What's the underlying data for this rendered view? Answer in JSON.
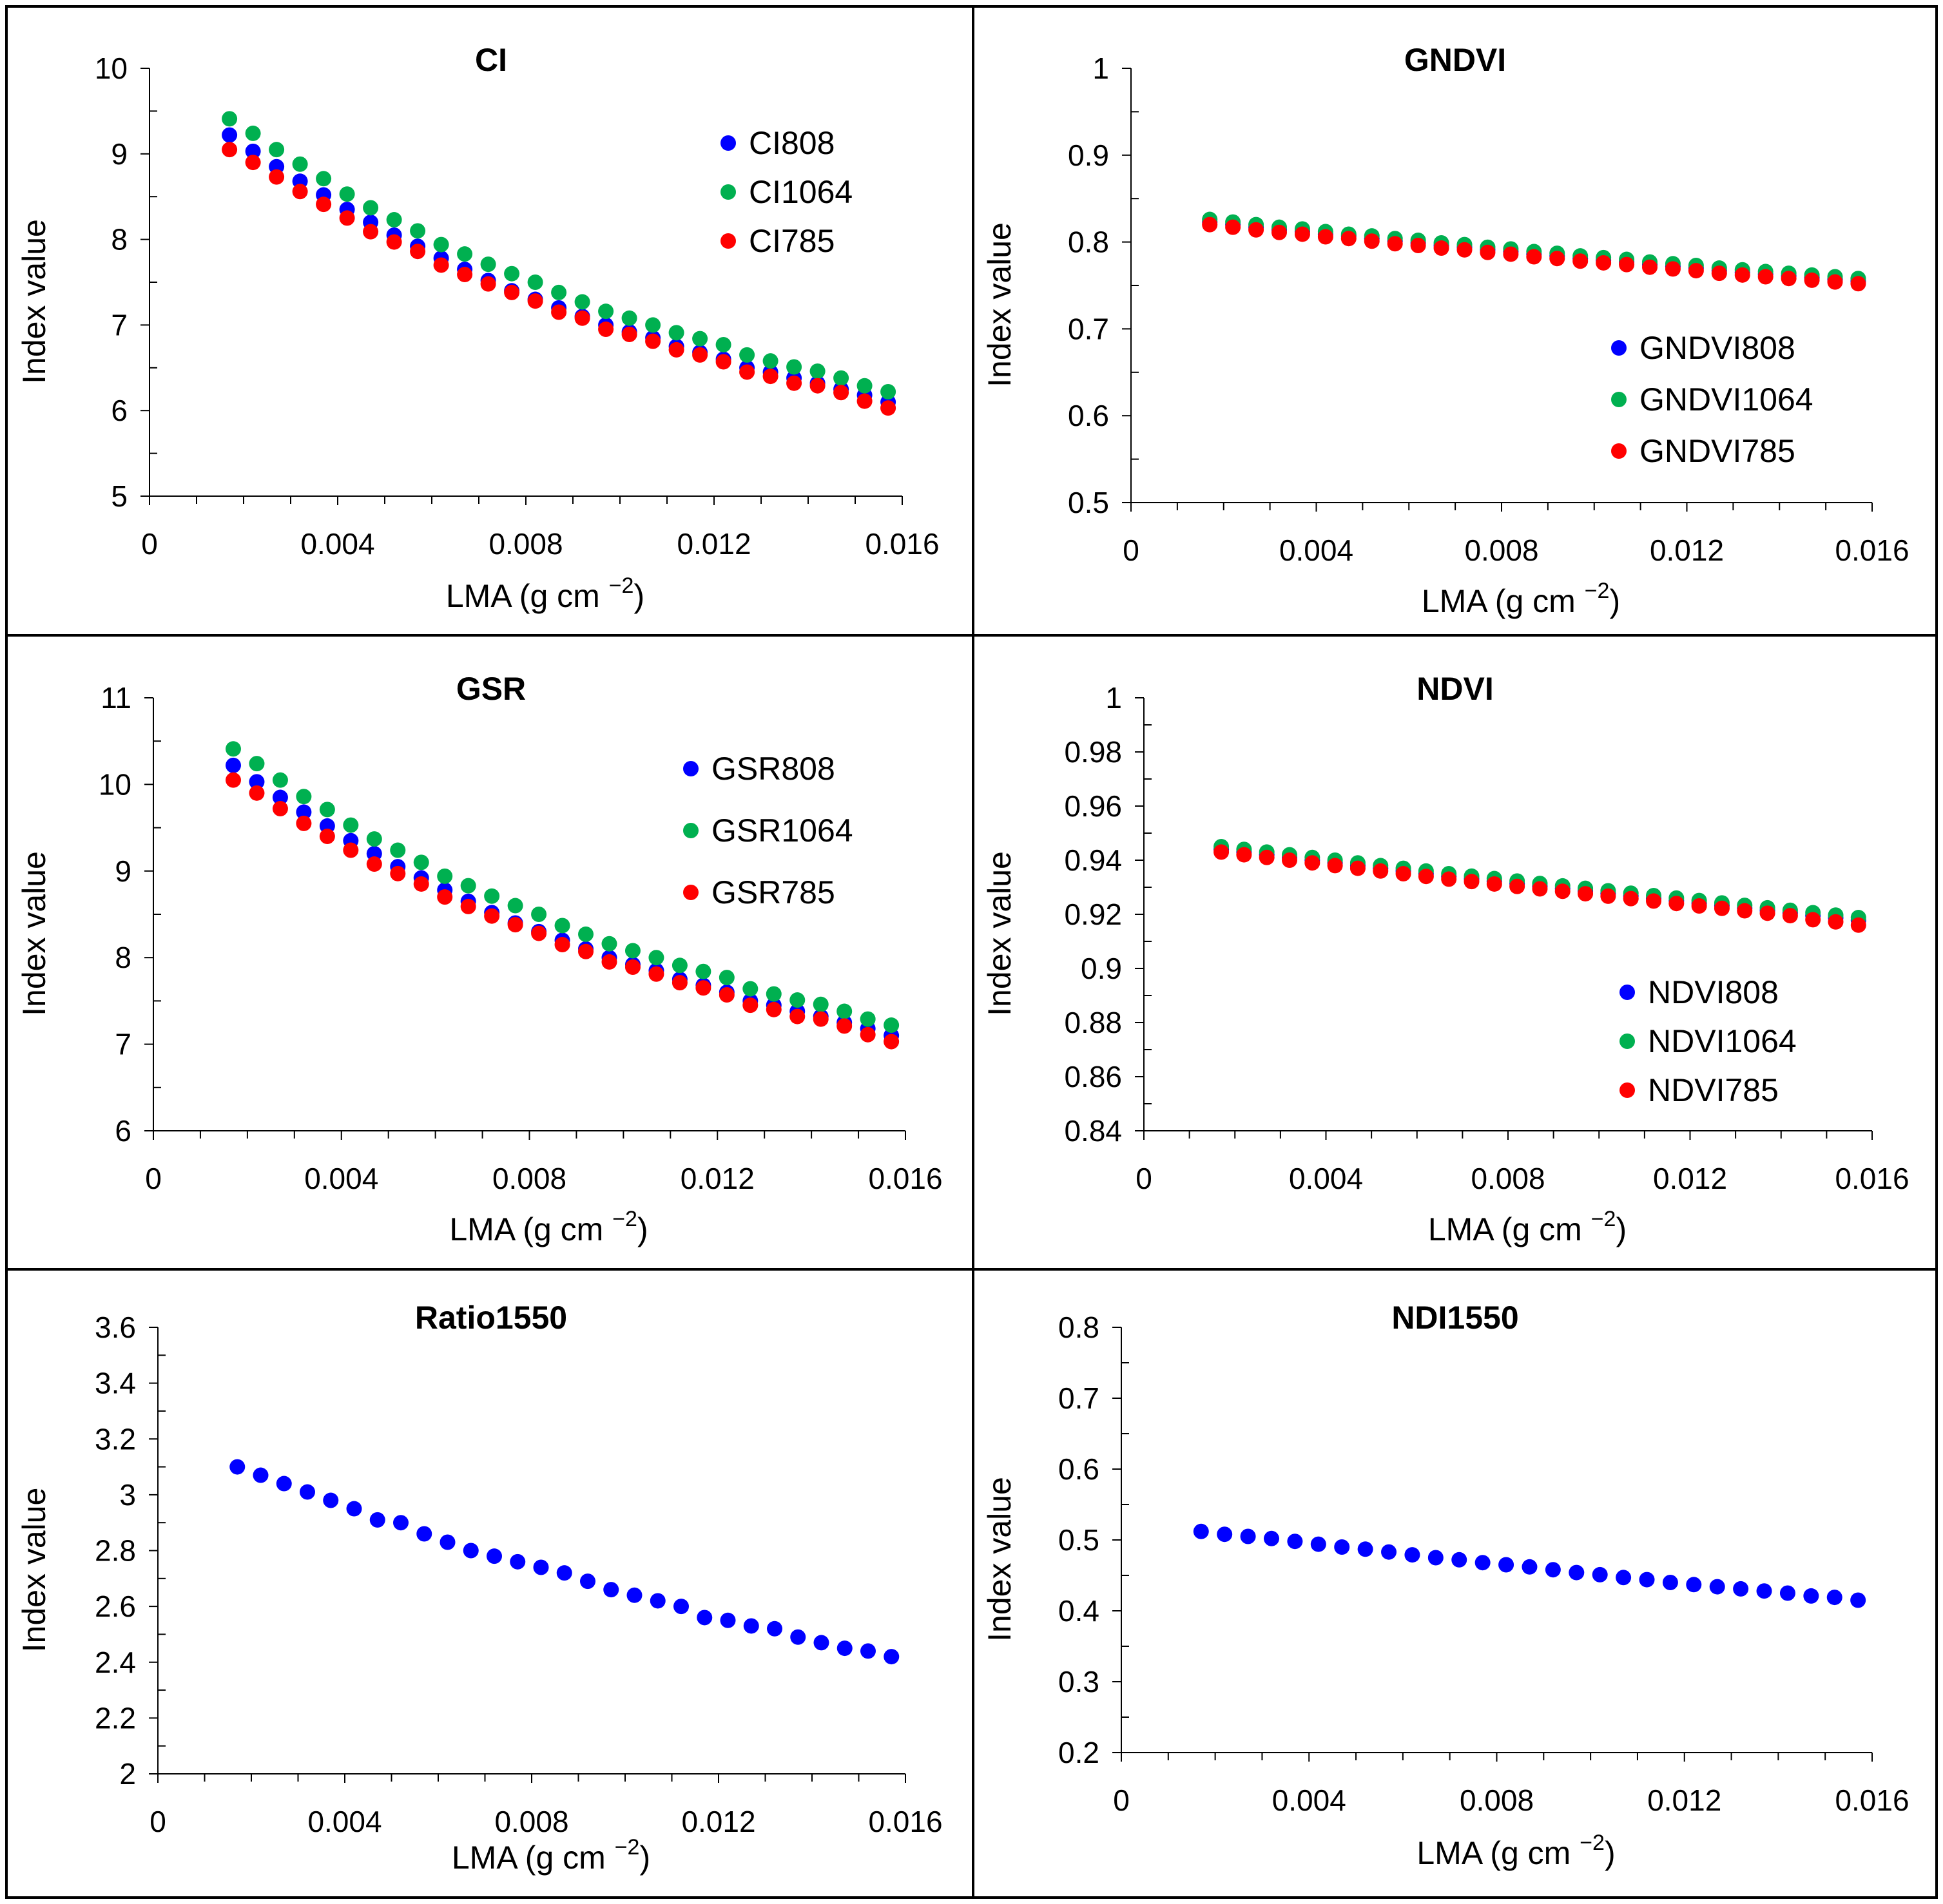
{
  "chart_data": [
    {
      "type": "scatter",
      "title": "CI",
      "xlabel": "LMA (g cm",
      "xlabel_sup": "−2",
      "xlabel_close": ")",
      "ylabel": "Index value",
      "xlim": [
        0,
        0.016
      ],
      "ylim": [
        5,
        10
      ],
      "xticks": [
        "0",
        "0.004",
        "0.008",
        "0.012",
        "0.016"
      ],
      "yticks": [
        "5",
        "6",
        "7",
        "8",
        "9",
        "10"
      ],
      "legend_position": "top-right",
      "x": [
        0.0017,
        0.0022,
        0.0027,
        0.0032,
        0.0037,
        0.0042,
        0.0047,
        0.0052,
        0.0057,
        0.0062,
        0.0067,
        0.0072,
        0.0077,
        0.0082,
        0.0087,
        0.0092,
        0.0097,
        0.0102,
        0.0107,
        0.0112,
        0.0117,
        0.0122,
        0.0127,
        0.0132,
        0.0137,
        0.0142,
        0.0147,
        0.0152,
        0.0157
      ],
      "series": [
        {
          "name": "CI808",
          "color": "#0000ff",
          "values": [
            9.22,
            9.03,
            8.85,
            8.68,
            8.52,
            8.35,
            8.2,
            8.05,
            7.92,
            7.78,
            7.65,
            7.52,
            7.4,
            7.3,
            7.2,
            7.1,
            7.0,
            6.92,
            6.85,
            6.75,
            6.68,
            6.6,
            6.5,
            6.45,
            6.38,
            6.32,
            6.25,
            6.18,
            6.1
          ]
        },
        {
          "name": "CI1064",
          "color": "#00b050",
          "values": [
            9.41,
            9.24,
            9.05,
            8.88,
            8.71,
            8.53,
            8.37,
            8.23,
            8.1,
            7.94,
            7.83,
            7.71,
            7.6,
            7.5,
            7.38,
            7.27,
            7.16,
            7.08,
            7.0,
            6.91,
            6.84,
            6.77,
            6.65,
            6.58,
            6.51,
            6.46,
            6.38,
            6.29,
            6.22
          ]
        },
        {
          "name": "CI785",
          "color": "#ff0000",
          "values": [
            9.05,
            8.9,
            8.73,
            8.56,
            8.41,
            8.25,
            8.09,
            7.97,
            7.86,
            7.7,
            7.59,
            7.48,
            7.38,
            7.28,
            7.15,
            7.08,
            6.95,
            6.89,
            6.81,
            6.71,
            6.65,
            6.57,
            6.45,
            6.4,
            6.32,
            6.29,
            6.21,
            6.11,
            6.03
          ]
        }
      ]
    },
    {
      "type": "scatter",
      "title": "GNDVI",
      "xlabel": "LMA (g cm",
      "xlabel_sup": "−2",
      "xlabel_close": ")",
      "ylabel": "Index value",
      "xlim": [
        0,
        0.016
      ],
      "ylim": [
        0.5,
        1
      ],
      "xticks": [
        "0",
        "0.004",
        "0.008",
        "0.012",
        "0.016"
      ],
      "yticks": [
        "0.5",
        "0.6",
        "0.7",
        "0.8",
        "0.9",
        "1"
      ],
      "legend_position": "bottom-right",
      "x": [
        0.0017,
        0.0022,
        0.0027,
        0.0032,
        0.0037,
        0.0042,
        0.0047,
        0.0052,
        0.0057,
        0.0062,
        0.0067,
        0.0072,
        0.0077,
        0.0082,
        0.0087,
        0.0092,
        0.0097,
        0.0102,
        0.0107,
        0.0112,
        0.0117,
        0.0122,
        0.0127,
        0.0132,
        0.0137,
        0.0142,
        0.0147,
        0.0152,
        0.0157
      ],
      "series": [
        {
          "name": "GNDVI808",
          "color": "#0000ff",
          "values": [
            0.823,
            0.82,
            0.817,
            0.814,
            0.812,
            0.809,
            0.807,
            0.804,
            0.801,
            0.799,
            0.796,
            0.794,
            0.791,
            0.789,
            0.786,
            0.784,
            0.781,
            0.779,
            0.777,
            0.774,
            0.772,
            0.77,
            0.767,
            0.765,
            0.763,
            0.761,
            0.759,
            0.757,
            0.755
          ]
        },
        {
          "name": "GNDVI1064",
          "color": "#00b050",
          "values": [
            0.826,
            0.823,
            0.82,
            0.817,
            0.815,
            0.812,
            0.809,
            0.807,
            0.804,
            0.802,
            0.799,
            0.797,
            0.794,
            0.792,
            0.789,
            0.787,
            0.784,
            0.782,
            0.78,
            0.777,
            0.775,
            0.773,
            0.77,
            0.768,
            0.766,
            0.764,
            0.762,
            0.76,
            0.758
          ]
        },
        {
          "name": "GNDVI785",
          "color": "#ff0000",
          "values": [
            0.82,
            0.817,
            0.814,
            0.811,
            0.809,
            0.806,
            0.804,
            0.801,
            0.798,
            0.796,
            0.793,
            0.791,
            0.788,
            0.786,
            0.783,
            0.781,
            0.778,
            0.776,
            0.774,
            0.771,
            0.769,
            0.767,
            0.764,
            0.762,
            0.76,
            0.758,
            0.756,
            0.754,
            0.752
          ]
        }
      ]
    },
    {
      "type": "scatter",
      "title": "GSR",
      "xlabel": "LMA (g cm",
      "xlabel_sup": "−2",
      "xlabel_close": ")",
      "ylabel": "Index value",
      "xlim": [
        0,
        0.016
      ],
      "ylim": [
        6,
        11
      ],
      "xticks": [
        "0",
        "0.004",
        "0.008",
        "0.012",
        "0.016"
      ],
      "yticks": [
        "6",
        "7",
        "8",
        "9",
        "10",
        "11"
      ],
      "legend_position": "top-right",
      "x": [
        0.0017,
        0.0022,
        0.0027,
        0.0032,
        0.0037,
        0.0042,
        0.0047,
        0.0052,
        0.0057,
        0.0062,
        0.0067,
        0.0072,
        0.0077,
        0.0082,
        0.0087,
        0.0092,
        0.0097,
        0.0102,
        0.0107,
        0.0112,
        0.0117,
        0.0122,
        0.0127,
        0.0132,
        0.0137,
        0.0142,
        0.0147,
        0.0152,
        0.0157
      ],
      "series": [
        {
          "name": "GSR808",
          "color": "#0000ff",
          "values": [
            10.22,
            10.03,
            9.85,
            9.68,
            9.52,
            9.35,
            9.2,
            9.05,
            8.92,
            8.78,
            8.65,
            8.52,
            8.4,
            8.3,
            8.2,
            8.1,
            8.0,
            7.92,
            7.85,
            7.75,
            7.68,
            7.6,
            7.5,
            7.45,
            7.38,
            7.32,
            7.25,
            7.18,
            7.1
          ]
        },
        {
          "name": "GSR1064",
          "color": "#00b050",
          "values": [
            10.41,
            10.24,
            10.05,
            9.86,
            9.71,
            9.53,
            9.37,
            9.24,
            9.1,
            8.94,
            8.83,
            8.71,
            8.6,
            8.5,
            8.37,
            8.27,
            8.16,
            8.08,
            8.0,
            7.91,
            7.84,
            7.77,
            7.64,
            7.58,
            7.51,
            7.46,
            7.38,
            7.29,
            7.22
          ]
        },
        {
          "name": "GSR785",
          "color": "#ff0000",
          "values": [
            10.05,
            9.9,
            9.72,
            9.55,
            9.4,
            9.24,
            9.08,
            8.97,
            8.85,
            8.7,
            8.59,
            8.48,
            8.38,
            8.28,
            8.15,
            8.07,
            7.95,
            7.89,
            7.81,
            7.71,
            7.65,
            7.57,
            7.45,
            7.4,
            7.32,
            7.29,
            7.21,
            7.11,
            7.03
          ]
        }
      ]
    },
    {
      "type": "scatter",
      "title": "NDVI",
      "xlabel": "LMA (g cm",
      "xlabel_sup": "−2",
      "xlabel_close": ")",
      "ylabel": "Index value",
      "xlim": [
        0,
        0.016
      ],
      "ylim": [
        0.84,
        1
      ],
      "xticks": [
        "0",
        "0.004",
        "0.008",
        "0.012",
        "0.016"
      ],
      "yticks": [
        "0.84",
        "0.86",
        "0.88",
        "0.9",
        "0.92",
        "0.94",
        "0.96",
        "0.98",
        "1"
      ],
      "legend_position": "bottom-right",
      "x": [
        0.0017,
        0.0022,
        0.0027,
        0.0032,
        0.0037,
        0.0042,
        0.0047,
        0.0052,
        0.0057,
        0.0062,
        0.0067,
        0.0072,
        0.0077,
        0.0082,
        0.0087,
        0.0092,
        0.0097,
        0.0102,
        0.0107,
        0.0112,
        0.0117,
        0.0122,
        0.0127,
        0.0132,
        0.0137,
        0.0142,
        0.0147,
        0.0152,
        0.0157
      ],
      "series": [
        {
          "name": "NDVI808",
          "color": "#0000ff",
          "values": [
            0.944,
            0.943,
            0.942,
            0.941,
            0.94,
            0.939,
            0.938,
            0.937,
            0.936,
            0.935,
            0.934,
            0.9331,
            0.9322,
            0.9313,
            0.9304,
            0.9295,
            0.9286,
            0.9277,
            0.9268,
            0.9259,
            0.925,
            0.9241,
            0.9232,
            0.9223,
            0.9214,
            0.9205,
            0.9196,
            0.9187,
            0.9178
          ]
        },
        {
          "name": "NDVI1064",
          "color": "#00b050",
          "values": [
            0.945,
            0.944,
            0.943,
            0.942,
            0.941,
            0.94,
            0.939,
            0.938,
            0.937,
            0.936,
            0.935,
            0.9341,
            0.9332,
            0.9323,
            0.9314,
            0.9305,
            0.9296,
            0.9287,
            0.9278,
            0.9269,
            0.926,
            0.9251,
            0.9242,
            0.9233,
            0.9224,
            0.9215,
            0.9206,
            0.9197,
            0.9188
          ]
        },
        {
          "name": "NDVI785",
          "color": "#ff0000",
          "values": [
            0.943,
            0.942,
            0.941,
            0.94,
            0.939,
            0.938,
            0.937,
            0.936,
            0.935,
            0.934,
            0.933,
            0.9321,
            0.9312,
            0.9303,
            0.9294,
            0.9285,
            0.9276,
            0.9267,
            0.9258,
            0.9249,
            0.924,
            0.9231,
            0.9222,
            0.9213,
            0.9204,
            0.9195,
            0.918,
            0.9172,
            0.916
          ]
        }
      ]
    },
    {
      "type": "scatter",
      "title": "Ratio1550",
      "xlabel": "LMA (g cm",
      "xlabel_sup": "−2",
      "xlabel_close": ")",
      "ylabel": "Index value",
      "xlim": [
        0,
        0.016
      ],
      "ylim": [
        2,
        3.6
      ],
      "xticks": [
        "0",
        "0.004",
        "0.008",
        "0.012",
        "0.016"
      ],
      "yticks": [
        "2",
        "2.2",
        "2.4",
        "2.6",
        "2.8",
        "3",
        "3.2",
        "3.4",
        "3.6"
      ],
      "legend_position": "none",
      "x": [
        0.0017,
        0.0022,
        0.0027,
        0.0032,
        0.0037,
        0.0042,
        0.0047,
        0.0052,
        0.0057,
        0.0062,
        0.0067,
        0.0072,
        0.0077,
        0.0082,
        0.0087,
        0.0092,
        0.0097,
        0.0102,
        0.0107,
        0.0112,
        0.0117,
        0.0122,
        0.0127,
        0.0132,
        0.0137,
        0.0142,
        0.0147,
        0.0152,
        0.0157
      ],
      "series": [
        {
          "name": "Ratio1550",
          "color": "#0000ff",
          "values": [
            3.1,
            3.07,
            3.04,
            3.01,
            2.98,
            2.95,
            2.91,
            2.9,
            2.86,
            2.83,
            2.8,
            2.78,
            2.76,
            2.74,
            2.72,
            2.69,
            2.66,
            2.64,
            2.62,
            2.6,
            2.56,
            2.55,
            2.53,
            2.52,
            2.49,
            2.47,
            2.45,
            2.44,
            2.42
          ]
        }
      ]
    },
    {
      "type": "scatter",
      "title": "NDI1550",
      "xlabel": "LMA (g cm",
      "xlabel_sup": "−2",
      "xlabel_close": ")",
      "ylabel": "Index value",
      "xlim": [
        0,
        0.016
      ],
      "ylim": [
        0.2,
        0.8
      ],
      "xticks": [
        "0",
        "0.004",
        "0.008",
        "0.012",
        "0.016"
      ],
      "yticks": [
        "0.2",
        "0.3",
        "0.4",
        "0.5",
        "0.6",
        "0.7",
        "0.8"
      ],
      "legend_position": "none",
      "x": [
        0.0017,
        0.0022,
        0.0027,
        0.0032,
        0.0037,
        0.0042,
        0.0047,
        0.0052,
        0.0057,
        0.0062,
        0.0067,
        0.0072,
        0.0077,
        0.0082,
        0.0087,
        0.0092,
        0.0097,
        0.0102,
        0.0107,
        0.0112,
        0.0117,
        0.0122,
        0.0127,
        0.0132,
        0.0137,
        0.0142,
        0.0147,
        0.0152,
        0.0157
      ],
      "series": [
        {
          "name": "NDI1550",
          "color": "#0000ff",
          "values": [
            0.512,
            0.508,
            0.505,
            0.502,
            0.498,
            0.494,
            0.49,
            0.487,
            0.483,
            0.479,
            0.475,
            0.472,
            0.468,
            0.465,
            0.462,
            0.458,
            0.454,
            0.451,
            0.447,
            0.444,
            0.44,
            0.437,
            0.434,
            0.431,
            0.428,
            0.425,
            0.421,
            0.419,
            0.415
          ]
        }
      ]
    }
  ]
}
